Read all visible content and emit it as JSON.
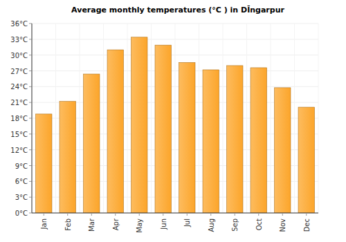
{
  "chart_data": {
    "type": "bar",
    "title": "Average monthly temperatures (°C ) in DĪngarpur",
    "categories": [
      "Jan",
      "Feb",
      "Mar",
      "Apr",
      "May",
      "Jun",
      "Jul",
      "Aug",
      "Sep",
      "Oct",
      "Nov",
      "Dec"
    ],
    "values": [
      18.8,
      21.2,
      26.4,
      31.0,
      33.4,
      31.9,
      28.6,
      27.2,
      28.0,
      27.6,
      23.8,
      20.1
    ],
    "color": "#fca52a",
    "ylim": [
      0,
      36
    ],
    "yticks": [
      {
        "value": 0,
        "label": "0°C"
      },
      {
        "value": 3,
        "label": "3°C"
      },
      {
        "value": 6,
        "label": "6°C"
      },
      {
        "value": 9,
        "label": "9°C"
      },
      {
        "value": 12,
        "label": "12°C"
      },
      {
        "value": 15,
        "label": "15°C"
      },
      {
        "value": 18,
        "label": "18°C"
      },
      {
        "value": 21,
        "label": "21°C"
      },
      {
        "value": 24,
        "label": "24°C"
      },
      {
        "value": 27,
        "label": "27°C"
      },
      {
        "value": 30,
        "label": "30°C"
      },
      {
        "value": 33,
        "label": "33°C"
      },
      {
        "value": 36,
        "label": "36°C"
      }
    ],
    "grid": true
  }
}
